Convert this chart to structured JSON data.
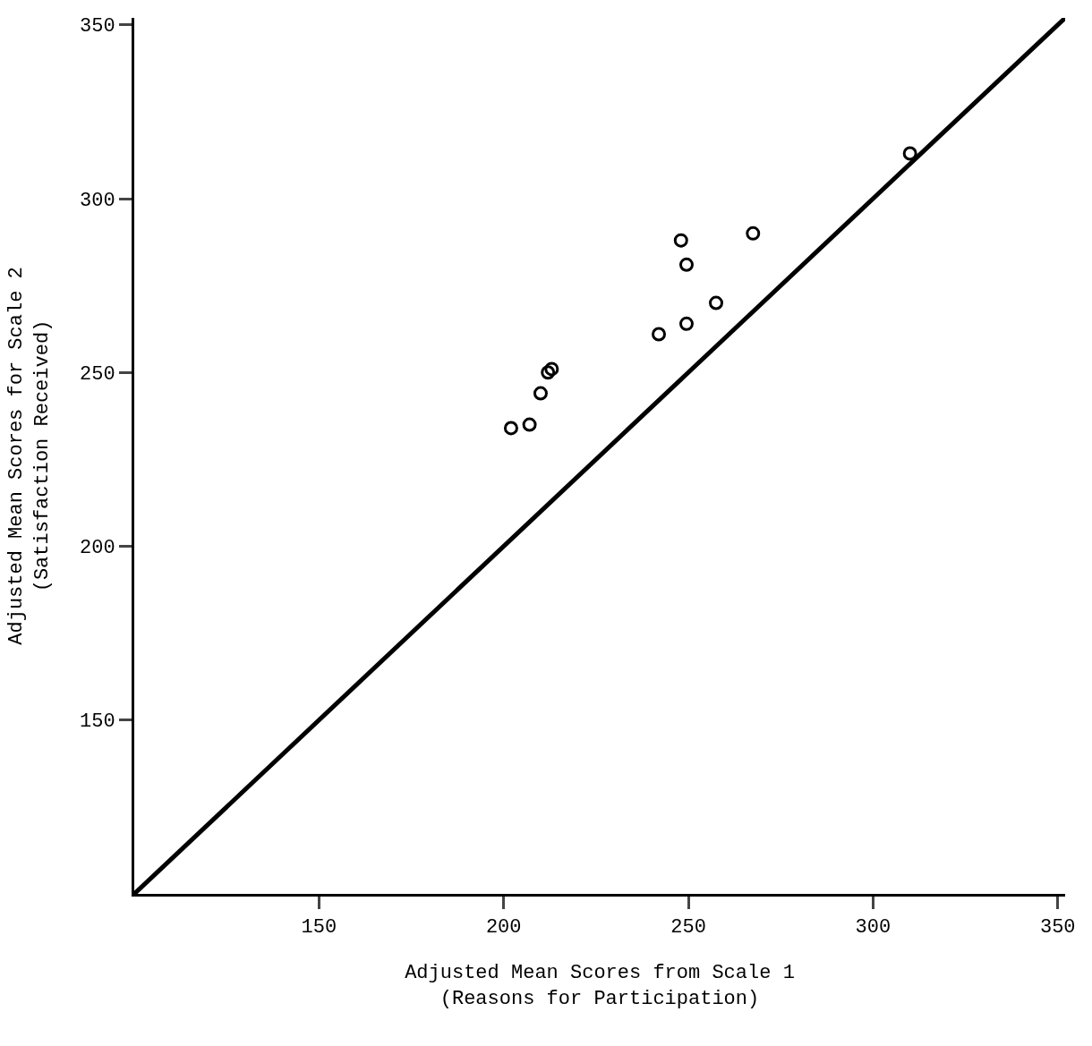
{
  "chart_data": {
    "type": "scatter",
    "xlabel": "Adjusted Mean Scores from Scale 1\n(Reasons for Participation)",
    "ylabel": "Adjusted Mean Scores for Scale 2\n(Satisfaction Received)",
    "x": [
      202,
      207,
      210,
      212,
      213,
      242,
      248,
      249.5,
      249.5,
      257.5,
      267.5,
      310
    ],
    "values": [
      234,
      235,
      244,
      250,
      251,
      261,
      288,
      281,
      264,
      270,
      290,
      313
    ],
    "color": "#000000",
    "marker": "circle",
    "series": [
      {
        "type": "line",
        "color": "#000000",
        "x": [
          100,
          352
        ],
        "values": [
          100,
          352
        ],
        "line_style": "solid",
        "marker": "none"
      }
    ],
    "xlim": [
      100,
      352
    ],
    "ylim": [
      100,
      352
    ],
    "xticks": [
      150,
      200,
      250,
      300,
      350
    ],
    "yticks": [
      150,
      200,
      250,
      300,
      350
    ],
    "grid": false
  }
}
